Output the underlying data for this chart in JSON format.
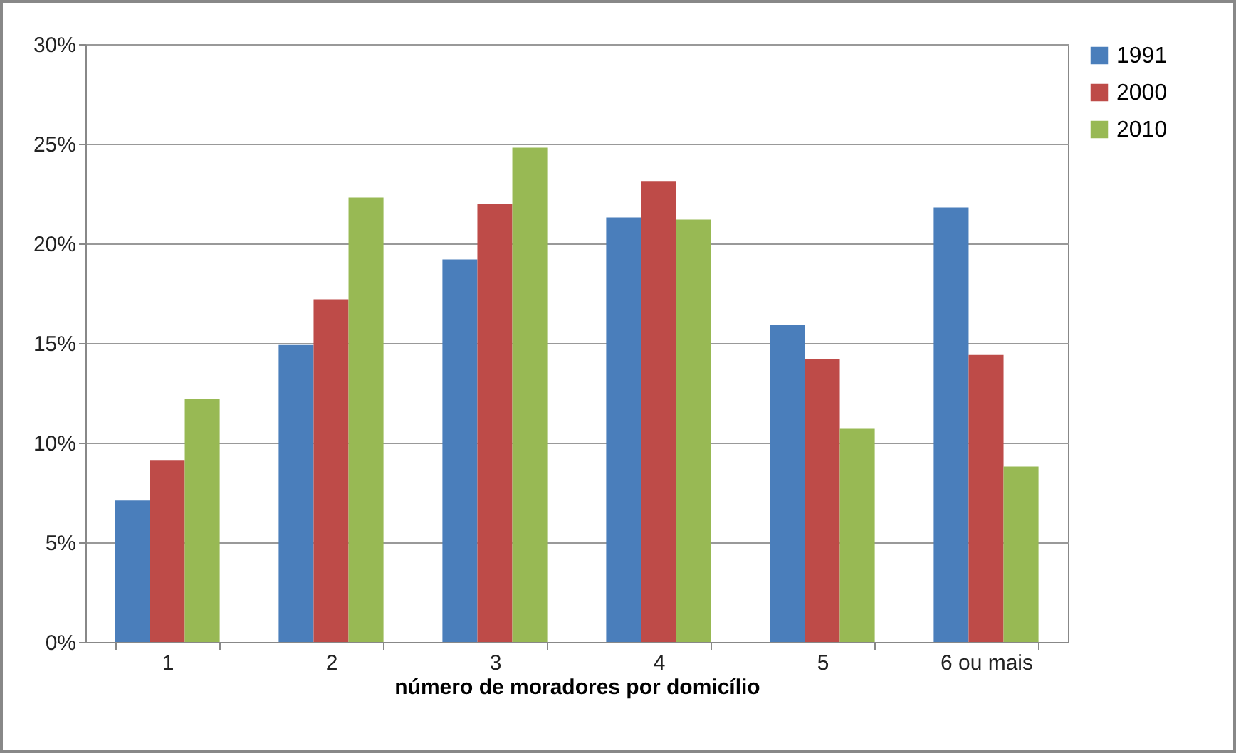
{
  "chart_data": {
    "type": "bar",
    "xlabel": "número de moradores por domicílio",
    "categories": [
      "1",
      "2",
      "3",
      "4",
      "5",
      "6 ou mais"
    ],
    "series": [
      {
        "name": "1991",
        "color": "#4a7ebb",
        "values": [
          7.1,
          14.9,
          19.2,
          21.3,
          15.9,
          21.8
        ]
      },
      {
        "name": "2000",
        "color": "#be4b48",
        "values": [
          9.1,
          17.2,
          22.0,
          23.1,
          14.2,
          14.4
        ]
      },
      {
        "name": "2010",
        "color": "#98b954",
        "values": [
          12.2,
          22.3,
          24.8,
          21.2,
          10.7,
          8.8
        ]
      }
    ],
    "ylim": [
      0,
      30
    ],
    "yticks": [
      {
        "value": 0,
        "label": "0%"
      },
      {
        "value": 5,
        "label": "5%"
      },
      {
        "value": 10,
        "label": "10%"
      },
      {
        "value": 15,
        "label": "15%"
      },
      {
        "value": 20,
        "label": "20%"
      },
      {
        "value": 25,
        "label": "25%"
      },
      {
        "value": 30,
        "label": "30%"
      }
    ],
    "grid": "y",
    "legend": "right"
  }
}
